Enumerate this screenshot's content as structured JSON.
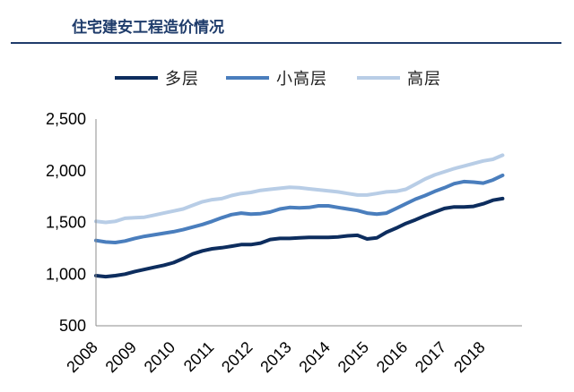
{
  "header": {
    "title": "住宅建安工程造价情况"
  },
  "colors": {
    "title": "#1f3c6b",
    "rule": "#1f3c6b"
  },
  "chart_data": {
    "type": "line",
    "title": "住宅建安工程造价情况",
    "xlabel": "",
    "ylabel": "",
    "xlim": [
      2008,
      2019
    ],
    "ylim": [
      500,
      2500
    ],
    "yticks": [
      500,
      1000,
      1500,
      2000,
      2500
    ],
    "ytick_labels": [
      "500",
      "1,000",
      "1,500",
      "2,000",
      "2,500"
    ],
    "xticks": [
      2008,
      2009,
      2010,
      2011,
      2012,
      2013,
      2014,
      2015,
      2016,
      2017,
      2018
    ],
    "xtick_labels": [
      "2008",
      "2009",
      "2010",
      "2011",
      "2012",
      "2013",
      "2014",
      "2015",
      "2016",
      "2017",
      "2018"
    ],
    "grid": false,
    "legend_position": "top",
    "series": [
      {
        "name": "多层",
        "color": "#0d2d5e",
        "x": [
          2008.0,
          2008.25,
          2008.5,
          2008.75,
          2009.0,
          2009.25,
          2009.5,
          2009.75,
          2010.0,
          2010.25,
          2010.5,
          2010.75,
          2011.0,
          2011.25,
          2011.5,
          2011.75,
          2012.0,
          2012.25,
          2012.5,
          2012.75,
          2013.0,
          2013.25,
          2013.5,
          2013.75,
          2014.0,
          2014.25,
          2014.5,
          2014.75,
          2015.0,
          2015.25,
          2015.5,
          2015.75,
          2016.0,
          2016.25,
          2016.5,
          2016.75,
          2017.0,
          2017.25,
          2017.5,
          2017.75,
          2018.0,
          2018.25,
          2018.5
        ],
        "values": [
          985,
          975,
          985,
          1000,
          1025,
          1045,
          1065,
          1085,
          1110,
          1150,
          1195,
          1225,
          1245,
          1255,
          1270,
          1285,
          1285,
          1300,
          1335,
          1345,
          1345,
          1350,
          1355,
          1355,
          1355,
          1360,
          1370,
          1375,
          1340,
          1350,
          1405,
          1445,
          1490,
          1525,
          1565,
          1600,
          1635,
          1650,
          1650,
          1655,
          1680,
          1715,
          1730
        ]
      },
      {
        "name": "小高层",
        "color": "#4a7ebd",
        "x": [
          2008.0,
          2008.25,
          2008.5,
          2008.75,
          2009.0,
          2009.25,
          2009.5,
          2009.75,
          2010.0,
          2010.25,
          2010.5,
          2010.75,
          2011.0,
          2011.25,
          2011.5,
          2011.75,
          2012.0,
          2012.25,
          2012.5,
          2012.75,
          2013.0,
          2013.25,
          2013.5,
          2013.75,
          2014.0,
          2014.25,
          2014.5,
          2014.75,
          2015.0,
          2015.25,
          2015.5,
          2015.75,
          2016.0,
          2016.25,
          2016.5,
          2016.75,
          2017.0,
          2017.25,
          2017.5,
          2017.75,
          2018.0,
          2018.25,
          2018.5
        ],
        "values": [
          1325,
          1310,
          1305,
          1320,
          1345,
          1365,
          1380,
          1395,
          1410,
          1430,
          1455,
          1480,
          1510,
          1545,
          1575,
          1590,
          1580,
          1585,
          1600,
          1630,
          1645,
          1640,
          1645,
          1660,
          1660,
          1645,
          1630,
          1615,
          1590,
          1580,
          1590,
          1635,
          1680,
          1725,
          1760,
          1800,
          1835,
          1875,
          1895,
          1890,
          1880,
          1910,
          1955
        ]
      },
      {
        "name": "高层",
        "color": "#b8cde6",
        "x": [
          2008.0,
          2008.25,
          2008.5,
          2008.75,
          2009.0,
          2009.25,
          2009.5,
          2009.75,
          2010.0,
          2010.25,
          2010.5,
          2010.75,
          2011.0,
          2011.25,
          2011.5,
          2011.75,
          2012.0,
          2012.25,
          2012.5,
          2012.75,
          2013.0,
          2013.25,
          2013.5,
          2013.75,
          2014.0,
          2014.25,
          2014.5,
          2014.75,
          2015.0,
          2015.25,
          2015.5,
          2015.75,
          2016.0,
          2016.25,
          2016.5,
          2016.75,
          2017.0,
          2017.25,
          2017.5,
          2017.75,
          2018.0,
          2018.25,
          2018.5
        ],
        "values": [
          1510,
          1500,
          1510,
          1540,
          1545,
          1550,
          1570,
          1590,
          1610,
          1630,
          1665,
          1700,
          1720,
          1730,
          1760,
          1780,
          1790,
          1810,
          1820,
          1830,
          1840,
          1835,
          1825,
          1815,
          1805,
          1795,
          1780,
          1765,
          1765,
          1780,
          1795,
          1800,
          1820,
          1870,
          1920,
          1960,
          1990,
          2020,
          2045,
          2070,
          2095,
          2110,
          2150
        ]
      }
    ]
  }
}
